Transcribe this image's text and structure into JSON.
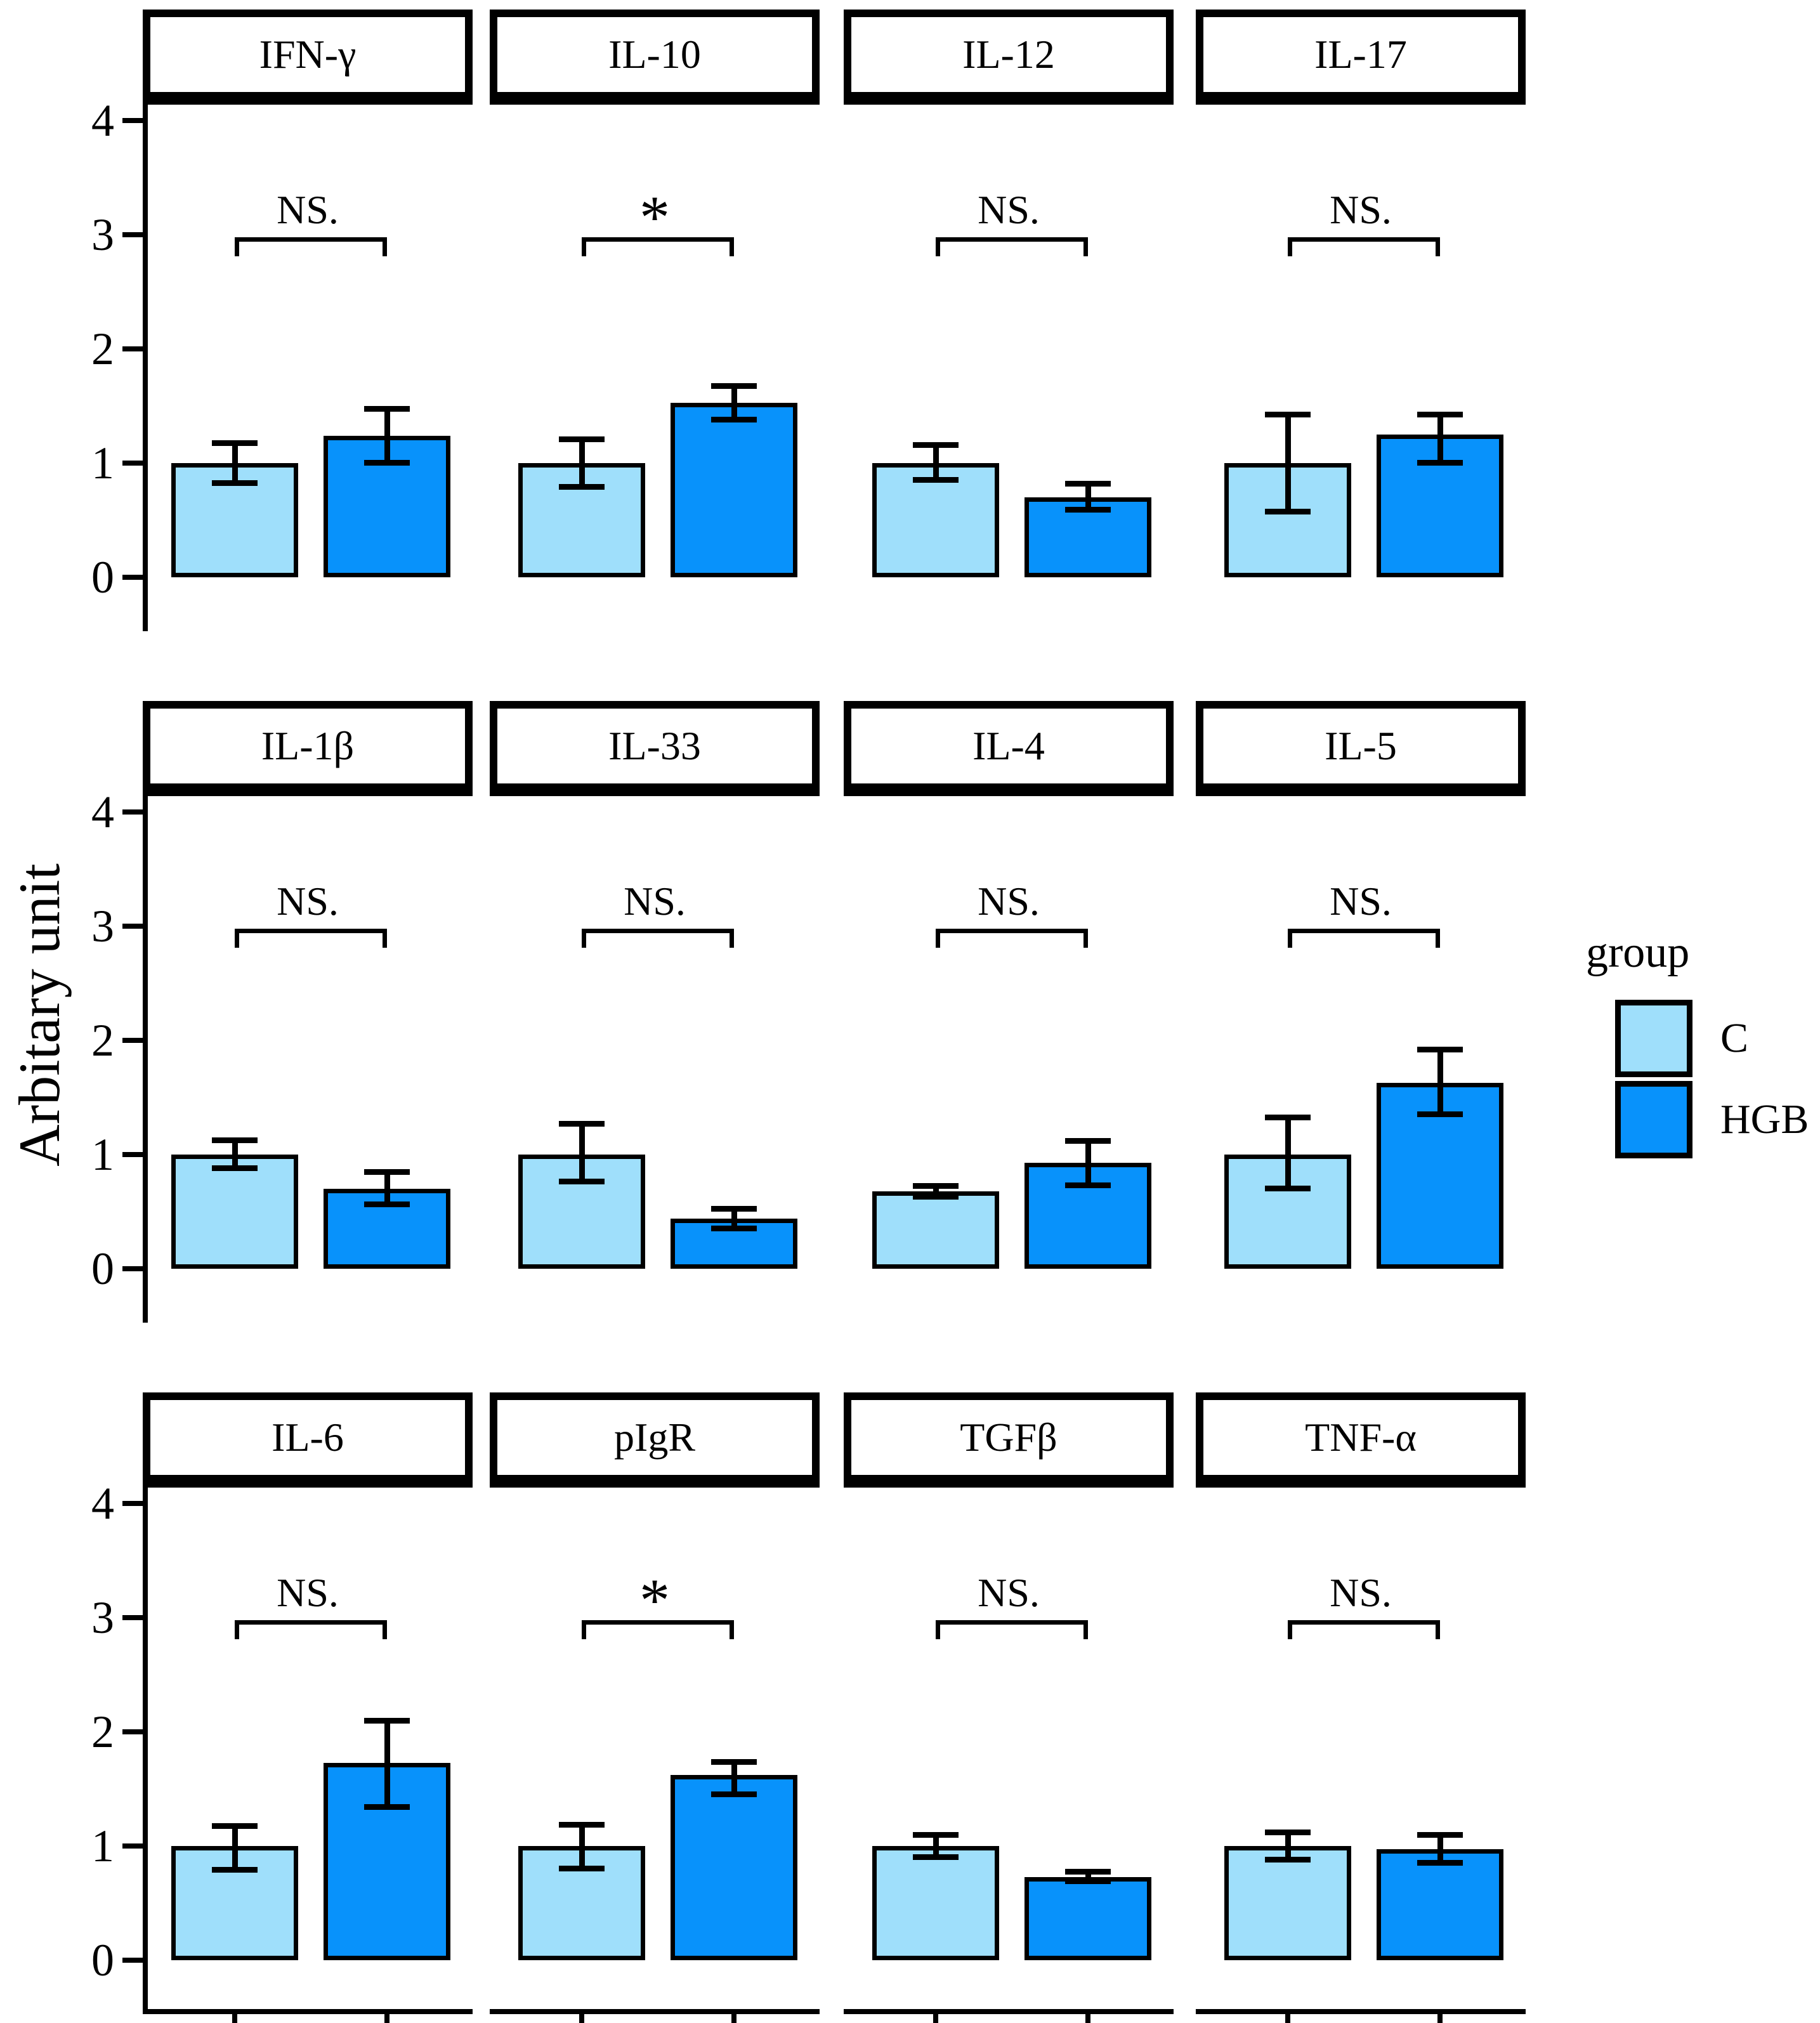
{
  "ylabel": "Arbitary unit",
  "y_tick_labels": [
    "0",
    "1",
    "2",
    "3",
    "4"
  ],
  "colors": {
    "c_fill": "#9FDFFB",
    "hgb_fill": "#0892FB",
    "bar_border": "#000000",
    "axis": "#000000"
  },
  "legend": {
    "title": "group",
    "items": [
      {
        "label": "C",
        "color": "#9FDFFB"
      },
      {
        "label": "HGB",
        "color": "#0892FB"
      }
    ]
  },
  "chart_data": {
    "type": "bar",
    "layout": "3 rows x 4 columns faceted bar chart, two bars per facet with error bars and significance bracket",
    "ylabel": "Arbitary unit",
    "ylim": [
      0,
      4
    ],
    "y_ticks": [
      0,
      1,
      2,
      3,
      4
    ],
    "groups": [
      "C",
      "HGB"
    ],
    "legend_position": "right",
    "grid": false,
    "panels": [
      {
        "title": "IFN-γ",
        "significance": "NS.",
        "c": {
          "value": 1.0,
          "err_low": 0.82,
          "err_high": 1.18
        },
        "hgb": {
          "value": 1.24,
          "err_low": 1.0,
          "err_high": 1.48
        }
      },
      {
        "title": "IL-10",
        "significance": "*",
        "c": {
          "value": 1.0,
          "err_low": 0.79,
          "err_high": 1.21
        },
        "hgb": {
          "value": 1.53,
          "err_low": 1.38,
          "err_high": 1.68
        }
      },
      {
        "title": "IL-12",
        "significance": "NS.",
        "c": {
          "value": 1.0,
          "err_low": 0.85,
          "err_high": 1.16
        },
        "hgb": {
          "value": 0.7,
          "err_low": 0.59,
          "err_high": 0.82
        }
      },
      {
        "title": "IL-17",
        "significance": "NS.",
        "c": {
          "value": 1.0,
          "err_low": 0.57,
          "err_high": 1.43
        },
        "hgb": {
          "value": 1.25,
          "err_low": 1.0,
          "err_high": 1.43
        }
      },
      {
        "title": "IL-1β",
        "significance": "NS.",
        "c": {
          "value": 1.0,
          "err_low": 0.88,
          "err_high": 1.13
        },
        "hgb": {
          "value": 0.7,
          "err_low": 0.56,
          "err_high": 0.85
        }
      },
      {
        "title": "IL-33",
        "significance": "NS.",
        "c": {
          "value": 1.0,
          "err_low": 0.76,
          "err_high": 1.27
        },
        "hgb": {
          "value": 0.44,
          "err_low": 0.35,
          "err_high": 0.53
        }
      },
      {
        "title": "IL-4",
        "significance": "NS.",
        "c": {
          "value": 0.68,
          "err_low": 0.63,
          "err_high": 0.73
        },
        "hgb": {
          "value": 0.93,
          "err_low": 0.73,
          "err_high": 1.12
        }
      },
      {
        "title": "IL-5",
        "significance": "NS.",
        "c": {
          "value": 1.0,
          "err_low": 0.7,
          "err_high": 1.33
        },
        "hgb": {
          "value": 1.63,
          "err_low": 1.35,
          "err_high": 1.92
        }
      },
      {
        "title": "IL-6",
        "significance": "NS.",
        "c": {
          "value": 1.0,
          "err_low": 0.79,
          "err_high": 1.18
        },
        "hgb": {
          "value": 1.73,
          "err_low": 1.34,
          "err_high": 2.1
        }
      },
      {
        "title": "pIgR",
        "significance": "*",
        "c": {
          "value": 1.0,
          "err_low": 0.8,
          "err_high": 1.19
        },
        "hgb": {
          "value": 1.62,
          "err_low": 1.45,
          "err_high": 1.74
        }
      },
      {
        "title": "TGFβ",
        "significance": "NS.",
        "c": {
          "value": 1.0,
          "err_low": 0.9,
          "err_high": 1.1
        },
        "hgb": {
          "value": 0.73,
          "err_low": 0.69,
          "err_high": 0.78
        }
      },
      {
        "title": "TNF-α",
        "significance": "NS.",
        "c": {
          "value": 1.0,
          "err_low": 0.88,
          "err_high": 1.12
        },
        "hgb": {
          "value": 0.97,
          "err_low": 0.85,
          "err_high": 1.1
        }
      }
    ]
  }
}
